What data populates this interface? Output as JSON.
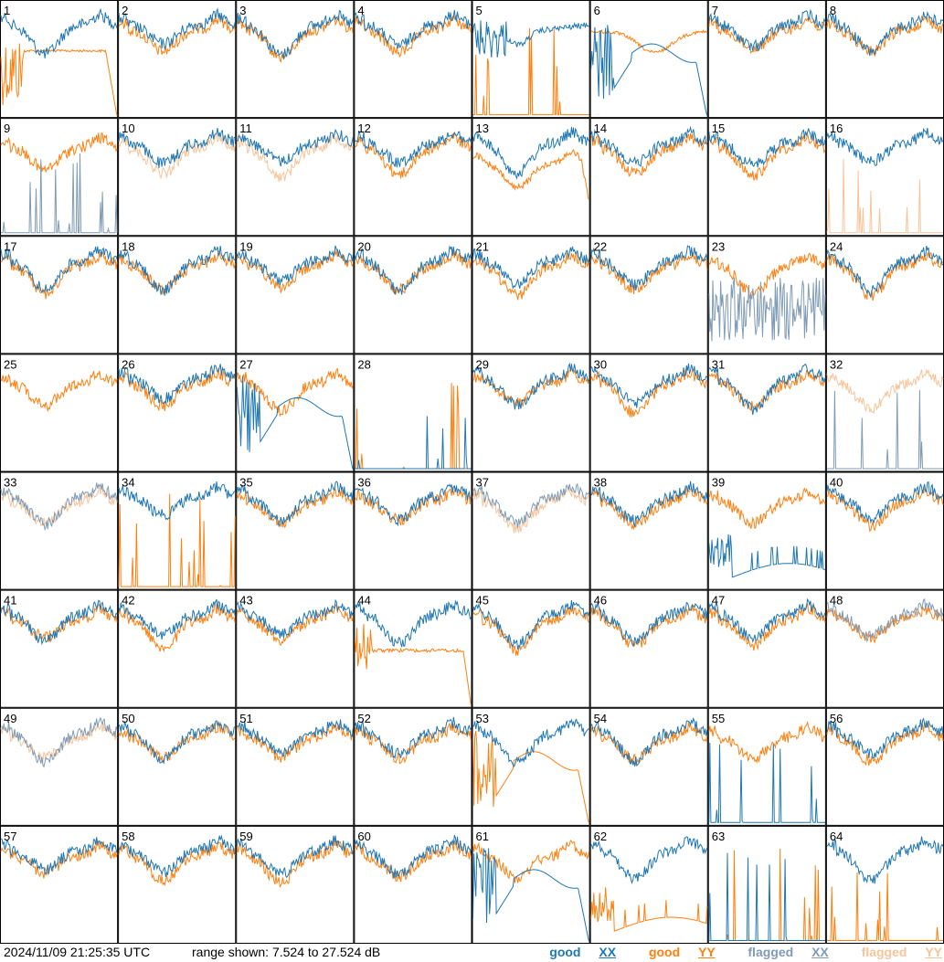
{
  "chart_data": {
    "type": "line",
    "layout": "small-multiples 8x8",
    "panel_labels": [
      "1",
      "2",
      "3",
      "4",
      "5",
      "6",
      "7",
      "8",
      "9",
      "10",
      "11",
      "12",
      "13",
      "14",
      "15",
      "16",
      "17",
      "18",
      "19",
      "20",
      "21",
      "22",
      "23",
      "24",
      "25",
      "26",
      "27",
      "28",
      "29",
      "30",
      "31",
      "32",
      "33",
      "34",
      "35",
      "36",
      "37",
      "38",
      "39",
      "40",
      "41",
      "42",
      "43",
      "44",
      "45",
      "46",
      "47",
      "48",
      "49",
      "50",
      "51",
      "52",
      "53",
      "54",
      "55",
      "56",
      "57",
      "58",
      "59",
      "60",
      "61",
      "62",
      "63",
      "64"
    ],
    "ylim_db": [
      7.524,
      27.524
    ],
    "series_colors": {
      "good_xx": "#1f77b4",
      "good_yy": "#ff7f0e",
      "flagged_xx": "#7f9bb5",
      "flagged_yy": "#f7c49a"
    },
    "panels": {
      "1": {
        "xx": "good",
        "yy": "special_drop"
      },
      "5": {
        "xx": "good_dip",
        "yy": "spiky_low"
      },
      "6": {
        "xx": "bowl_drop",
        "yy": "good_smooth"
      },
      "9": {
        "xx": "flagged_spiky",
        "yy": "good"
      },
      "10": {
        "xx": "good",
        "yy": "flagged"
      },
      "11": {
        "xx": "good",
        "yy": "flagged"
      },
      "13": {
        "xx": "good",
        "yy": "good_drop"
      },
      "16": {
        "xx": "good",
        "yy": "flagged_spiky"
      },
      "23": {
        "xx": "flagged_noisy",
        "yy": "good"
      },
      "25": {
        "xx": "hidden",
        "yy": "good"
      },
      "27": {
        "xx": "bowl_drop",
        "yy": "good"
      },
      "28": {
        "xx": "spiky_low",
        "yy": "spiky_low"
      },
      "32": {
        "xx": "flagged_spiky",
        "yy": "flagged"
      },
      "33": {
        "xx": "flagged",
        "yy": "flagged"
      },
      "34": {
        "xx": "good",
        "yy": "spiky_low"
      },
      "37": {
        "xx": "flagged",
        "yy": "flagged"
      },
      "39": {
        "xx": "low_curve",
        "yy": "good"
      },
      "44": {
        "xx": "good",
        "yy": "flat_drop"
      },
      "48": {
        "xx": "flagged",
        "yy": "good"
      },
      "49": {
        "xx": "flagged",
        "yy": "flagged"
      },
      "53": {
        "xx": "good",
        "yy": "bowl_drop"
      },
      "55": {
        "xx": "spiky_low",
        "yy": "good"
      },
      "61": {
        "xx": "bowl_drop",
        "yy": "good"
      },
      "62": {
        "xx": "good",
        "yy": "low_curve"
      },
      "63": {
        "xx": "spiky_low",
        "yy": "spiky_low"
      },
      "64": {
        "xx": "good",
        "yy": "spiky_low"
      }
    }
  },
  "footer": {
    "timestamp": "2024/11/09 21:25:35 UTC",
    "range_text": "range shown: 7.524 to 27.524 dB"
  },
  "legend": {
    "good_xx_a": "good ",
    "good_xx_b": "XX",
    "good_yy_a": "good ",
    "good_yy_b": "YY",
    "flagged_xx_a": "flagged ",
    "flagged_xx_b": "XX",
    "flagged_yy_a": "flagged ",
    "flagged_yy_b": "YY"
  }
}
